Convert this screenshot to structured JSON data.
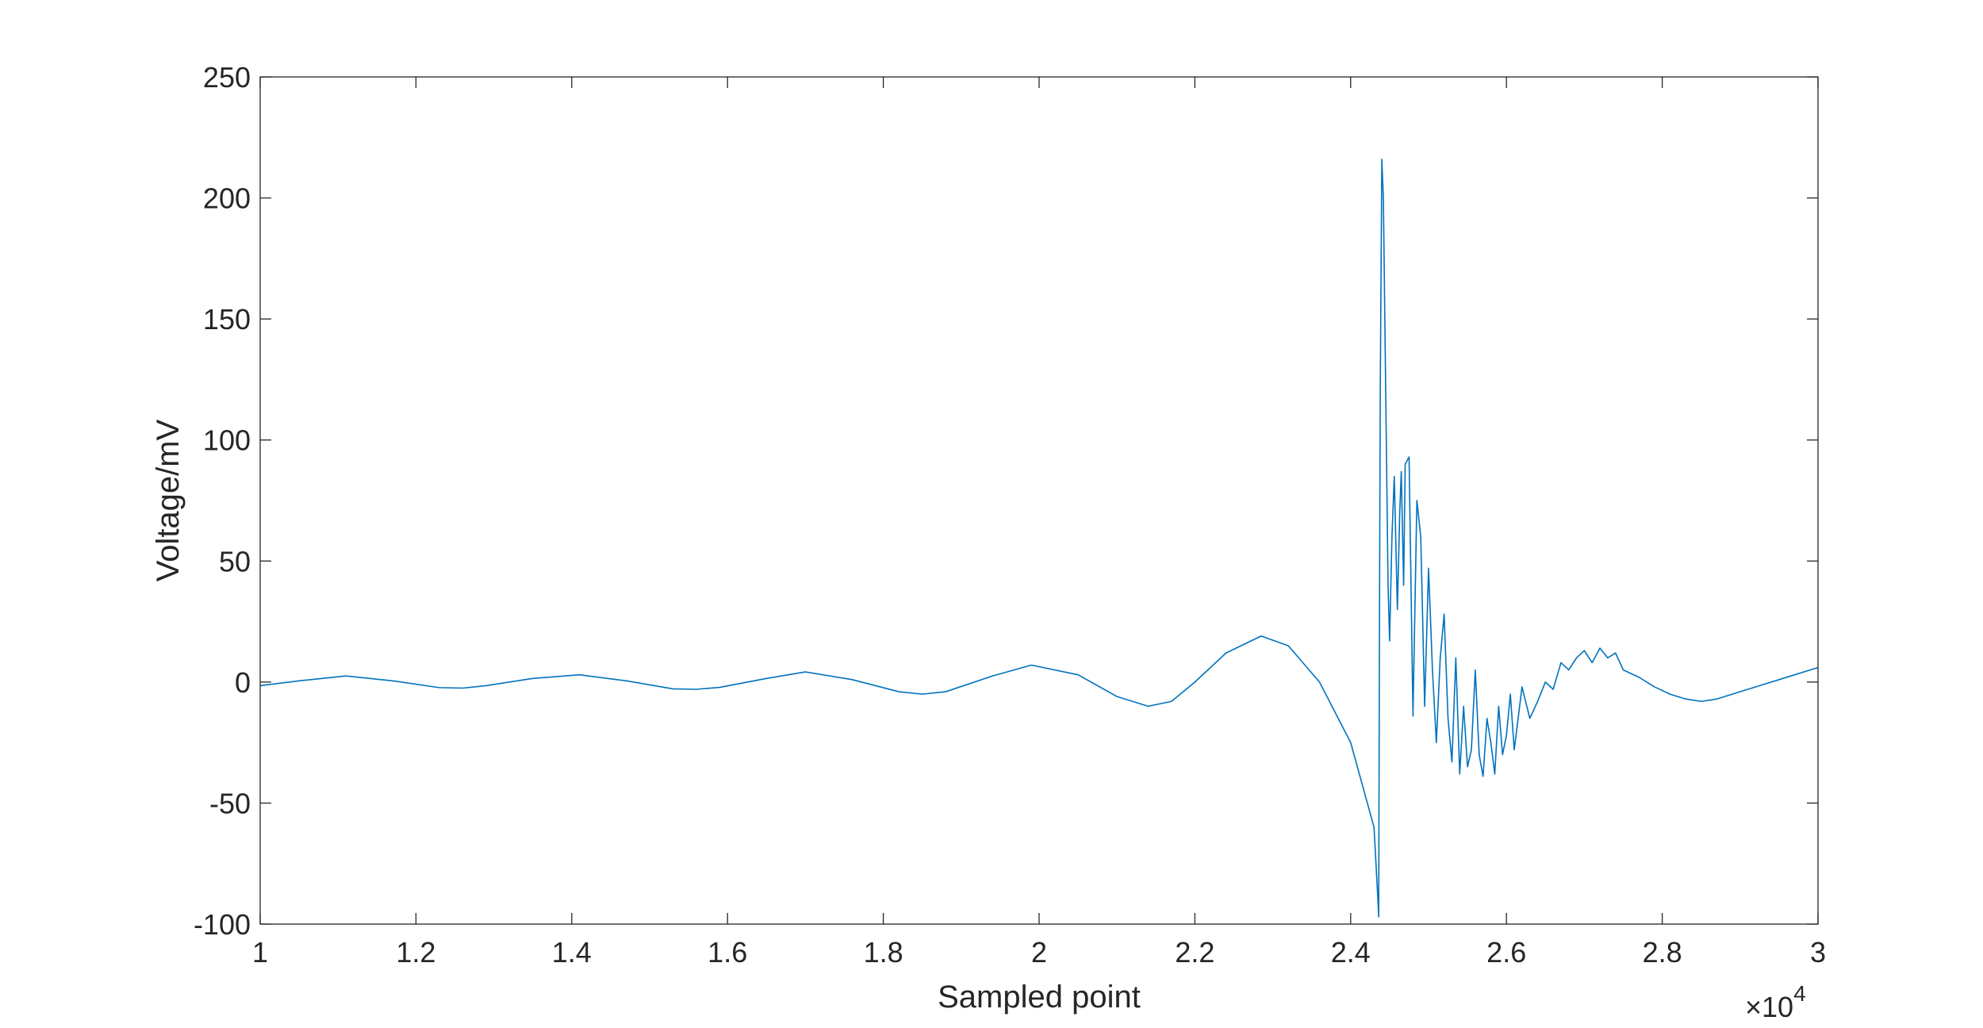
{
  "chart_data": {
    "type": "line",
    "title": "",
    "xlabel": "Sampled point",
    "ylabel": "Voltage/mV",
    "x_exponent_label": "×10",
    "x_exponent_power": "4",
    "xlim": [
      10000,
      30000
    ],
    "ylim": [
      -100,
      250
    ],
    "xticks": [
      10000,
      12000,
      14000,
      16000,
      18000,
      20000,
      22000,
      24000,
      26000,
      28000,
      30000
    ],
    "xtick_labels": [
      "1",
      "1.2",
      "1.4",
      "1.6",
      "1.8",
      "2",
      "2.2",
      "2.4",
      "2.6",
      "2.8",
      "3"
    ],
    "yticks": [
      -100,
      -50,
      0,
      50,
      100,
      150,
      200,
      250
    ],
    "ytick_labels": [
      "-100",
      "-50",
      "0",
      "50",
      "100",
      "150",
      "200",
      "250"
    ],
    "grid": false,
    "box": true,
    "line_color": "#0072bd",
    "series": [
      {
        "x": [
          10000,
          10500,
          11100,
          11700,
          12300,
          12600,
          12900,
          13500,
          14100,
          14700,
          15300,
          15600,
          15900,
          16500,
          17000,
          17600,
          18200,
          18500,
          18800,
          19400,
          19900,
          20500,
          21000,
          21400,
          21700,
          22000,
          22400,
          22850,
          23200,
          23600,
          24000,
          24300,
          24350,
          24360,
          24370,
          24380,
          24400,
          24420,
          24450,
          24480,
          24500,
          24530,
          24560,
          24600,
          24630,
          24650,
          24680,
          24700,
          24750,
          24800,
          24850,
          24900,
          24950,
          25000,
          25050,
          25100,
          25150,
          25200,
          25250,
          25300,
          25350,
          25400,
          25450,
          25500,
          25550,
          25600,
          25650,
          25700,
          25750,
          25800,
          25850,
          25900,
          25950,
          26000,
          26050,
          26100,
          26150,
          26200,
          26300,
          26400,
          26500,
          26600,
          26700,
          26800,
          26900,
          27000,
          27100,
          27200,
          27300,
          27400,
          27500,
          27700,
          27900,
          28100,
          28300,
          28500,
          28700,
          28900,
          29100,
          29300,
          29500,
          29700,
          29900,
          30000
        ],
        "y": [
          -1.5,
          0.5,
          2.5,
          0.5,
          -2.3,
          -2.5,
          -1.5,
          1.5,
          3.0,
          0.5,
          -2.8,
          -3.0,
          -2.2,
          1.5,
          4.2,
          1.0,
          -4.0,
          -5.0,
          -4.0,
          2.5,
          7.0,
          3.0,
          -6.0,
          -10.0,
          -8.0,
          0.0,
          12.0,
          19.0,
          15.0,
          0.0,
          -25.0,
          -60.0,
          -90.0,
          -97.0,
          25.0,
          120.0,
          216.0,
          200.0,
          120.0,
          40.0,
          17.0,
          60.0,
          85.0,
          30.0,
          70.0,
          87.0,
          40.0,
          90.0,
          93.0,
          -14.0,
          75.0,
          60.0,
          -10.0,
          47.0,
          5.0,
          -25.0,
          10.0,
          28.0,
          -15.0,
          -33.0,
          10.0,
          -38.0,
          -10.0,
          -35.0,
          -28.0,
          5.0,
          -30.0,
          -39.0,
          -15.0,
          -25.0,
          -38.0,
          -10.0,
          -30.0,
          -22.0,
          -5.0,
          -28.0,
          -15.0,
          -2.0,
          -15.0,
          -8.0,
          0.0,
          -3.0,
          8.0,
          5.0,
          10.0,
          13.0,
          8.0,
          14.0,
          10.0,
          12.0,
          5.0,
          2.0,
          -2.0,
          -5.0,
          -7.0,
          -8.0,
          -7.0,
          -5.0,
          -3.0,
          -1.0,
          1.0,
          3.0,
          5.0,
          6.0
        ]
      }
    ]
  }
}
